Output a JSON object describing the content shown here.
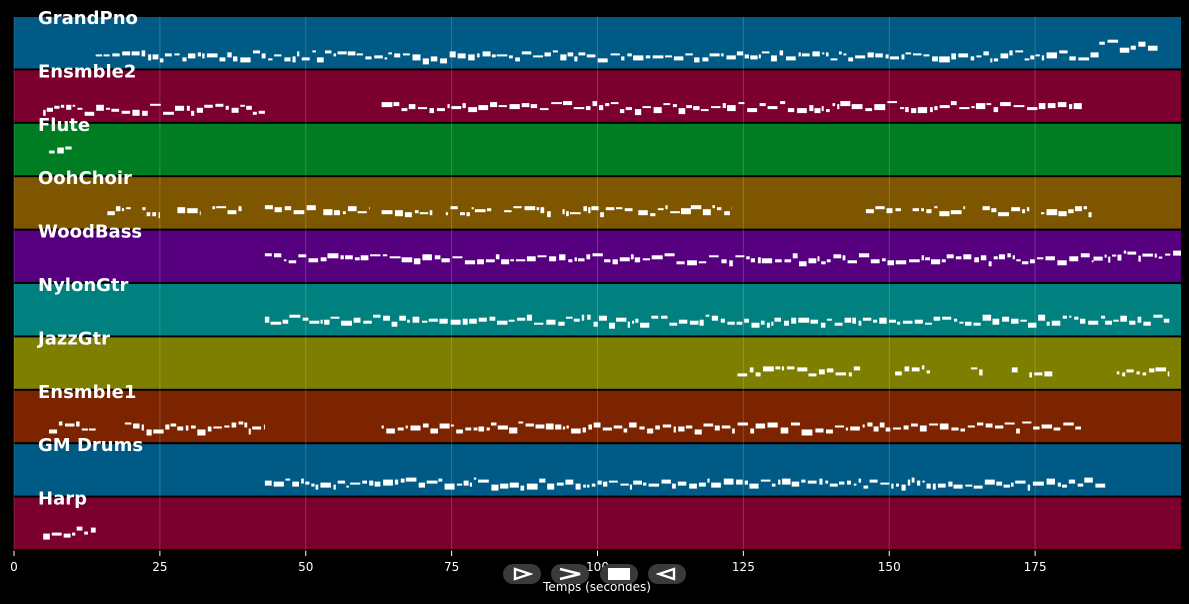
{
  "x_axis": {
    "label": "Temps (secondes)",
    "ticks": [
      "0",
      "25",
      "50",
      "75",
      "100",
      "125",
      "150",
      "175"
    ],
    "range": [
      0,
      200
    ]
  },
  "tracks": [
    {
      "name": "GrandPno",
      "color": "#005a86",
      "segments": [
        [
          14,
          186,
          0.55
        ],
        [
          186,
          196,
          0.35
        ]
      ]
    },
    {
      "name": "Ensmble2",
      "color": "#7c002e",
      "segments": [
        [
          5,
          43,
          0.55
        ],
        [
          63,
          183,
          0.5
        ]
      ]
    },
    {
      "name": "Flute",
      "color": "#007c22",
      "segments": [
        [
          6,
          10,
          0.35
        ]
      ]
    },
    {
      "name": "OohChoir",
      "color": "#7e5600",
      "segments": [
        [
          16,
          20,
          0.45
        ],
        [
          22,
          25,
          0.45
        ],
        [
          28,
          32,
          0.45
        ],
        [
          34,
          39,
          0.45
        ],
        [
          43,
          52,
          0.45
        ],
        [
          53,
          61,
          0.45
        ],
        [
          63,
          72,
          0.45
        ],
        [
          74,
          82,
          0.45
        ],
        [
          84,
          92,
          0.45
        ],
        [
          94,
          106,
          0.45
        ],
        [
          107,
          116,
          0.45
        ],
        [
          116,
          123,
          0.45
        ],
        [
          146,
          152,
          0.45
        ],
        [
          154,
          163,
          0.45
        ],
        [
          166,
          174,
          0.45
        ],
        [
          176,
          185,
          0.45
        ]
      ]
    },
    {
      "name": "WoodBass",
      "color": "#560080",
      "segments": [
        [
          43,
          185,
          0.35
        ],
        [
          185,
          200,
          0.3
        ]
      ]
    },
    {
      "name": "NylonGtr",
      "color": "#00807f",
      "segments": [
        [
          43,
          187,
          0.5
        ],
        [
          187,
          198,
          0.5
        ]
      ]
    },
    {
      "name": "JazzGtr",
      "color": "#7e7e00",
      "segments": [
        [
          124,
          145,
          0.45
        ],
        [
          151,
          157,
          0.45
        ],
        [
          164,
          166,
          0.45
        ],
        [
          171,
          172,
          0.45
        ],
        [
          174,
          178,
          0.45
        ],
        [
          189,
          198,
          0.45
        ]
      ]
    },
    {
      "name": "Ensmble1",
      "color": "#7c2300",
      "segments": [
        [
          6,
          14,
          0.5
        ],
        [
          19,
          43,
          0.5
        ],
        [
          63,
          183,
          0.5
        ]
      ]
    },
    {
      "name": "GM Drums",
      "color": "#005a86",
      "segments": [
        [
          43,
          187,
          0.55
        ]
      ]
    },
    {
      "name": "Harp",
      "color": "#7c002e",
      "segments": [
        [
          5,
          14,
          0.45
        ]
      ]
    }
  ],
  "controls": [
    {
      "name": "play-button",
      "icon": "play-icon"
    },
    {
      "name": "forward-button",
      "icon": "fast-forward-icon"
    },
    {
      "name": "stop-button",
      "icon": "stop-icon"
    },
    {
      "name": "rewind-button",
      "icon": "rewind-icon"
    }
  ]
}
